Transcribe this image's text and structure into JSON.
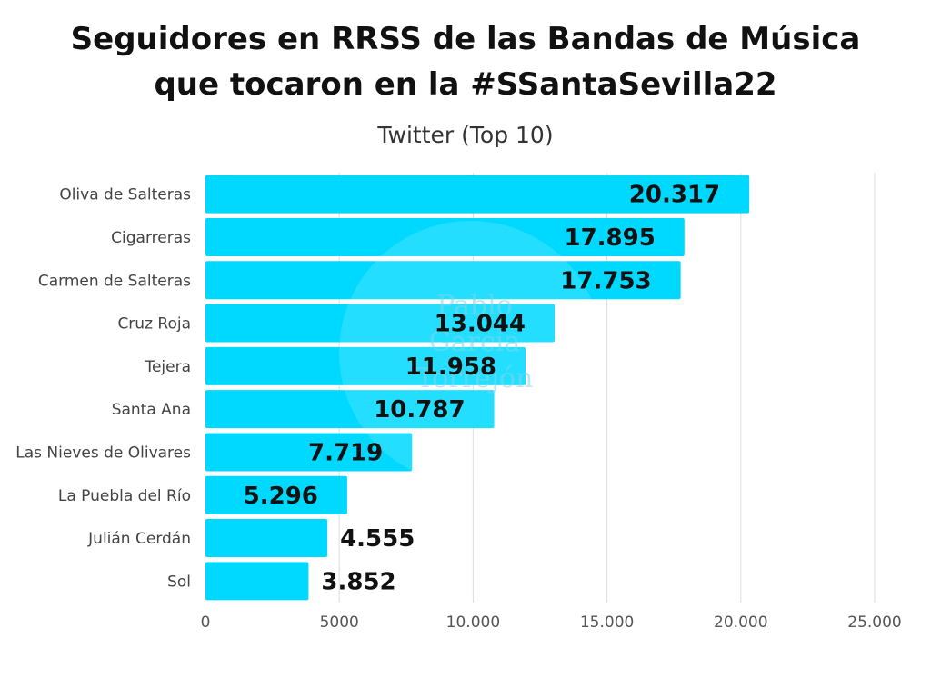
{
  "chart_data": {
    "type": "bar",
    "orientation": "horizontal",
    "title_lines": [
      "Seguidores en RRSS de las Bandas de Música",
      "que tocaron en la #SSantaSevilla22"
    ],
    "subtitle": "Twitter (Top 10)",
    "categories": [
      "Oliva de Salteras",
      "Cigarreras",
      "Carmen de Salteras",
      "Cruz Roja",
      "Tejera",
      "Santa Ana",
      "Las Nieves de Olivares",
      "La Puebla del Río",
      "Julián Cerdán",
      "Sol"
    ],
    "values": [
      20317,
      17895,
      17753,
      13044,
      11958,
      10787,
      7719,
      5296,
      4555,
      3852
    ],
    "value_labels": [
      "20.317",
      "17.895",
      "17.753",
      "13.044",
      "11.958",
      "10.787",
      "7.719",
      "5.296",
      "4.555",
      "3.852"
    ],
    "xlim": [
      0,
      25000
    ],
    "x_ticks": [
      0,
      5000,
      10000,
      15000,
      20000,
      25000
    ],
    "x_tick_labels": [
      "0",
      "5000",
      "10.000",
      "15.000",
      "20.000",
      "25.000"
    ],
    "grid": "vertical",
    "bar_color": "#00d9ff",
    "watermark": [
      "Pablo",
      "García",
      "Torrejón"
    ]
  }
}
